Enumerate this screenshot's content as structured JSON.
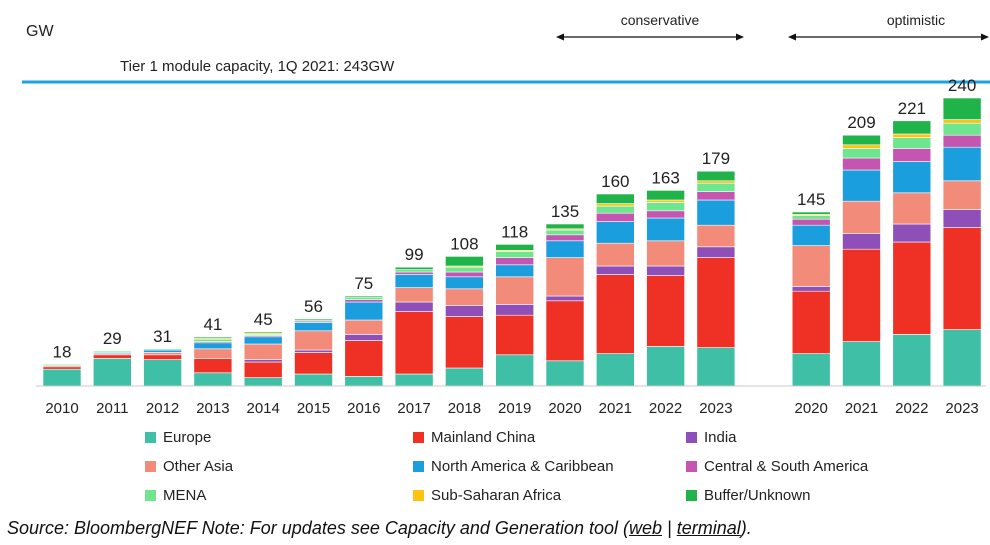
{
  "chart_data": {
    "type": "bar",
    "stacked": true,
    "ylabel": "GW",
    "reference_line": {
      "label": "Tier 1 module capacity, 1Q 2021: 243GW",
      "value": 243
    },
    "scenario_labels": {
      "conservative": "conservative",
      "optimistic": "optimistic"
    },
    "groups": [
      {
        "name": "",
        "categories": [
          "2010",
          "2011",
          "2012",
          "2013",
          "2014",
          "2015",
          "2016",
          "2017",
          "2018",
          "2019",
          "2020",
          "2021",
          "2022",
          "2023"
        ]
      },
      {
        "name": "",
        "categories": [
          "2020",
          "2021",
          "2022",
          "2023"
        ]
      }
    ],
    "totals": [
      18,
      29,
      31,
      41,
      45,
      56,
      75,
      99,
      108,
      118,
      135,
      160,
      163,
      179,
      145,
      209,
      221,
      240
    ],
    "series": [
      {
        "name": "Europe",
        "color": "#3fbfa6",
        "values": [
          14,
          23,
          22,
          11,
          7,
          10,
          8,
          10,
          15,
          26,
          21,
          27,
          33,
          32,
          27,
          37,
          43,
          47
        ]
      },
      {
        "name": "Mainland China",
        "color": "#ee3124",
        "values": [
          2,
          3,
          4,
          12,
          13,
          18,
          30,
          52,
          43,
          33,
          50,
          66,
          59,
          75,
          52,
          77,
          77,
          85
        ]
      },
      {
        "name": "India",
        "color": "#8e50b8",
        "values": [
          0,
          0,
          0,
          0,
          2,
          2,
          5,
          8,
          9,
          9,
          4,
          7,
          8,
          9,
          4,
          13,
          15,
          15
        ]
      },
      {
        "name": "Other Asia",
        "color": "#f28b7a",
        "values": [
          1,
          1,
          2,
          8,
          13,
          16,
          12,
          12,
          14,
          23,
          32,
          19,
          21,
          18,
          34,
          27,
          26,
          24
        ]
      },
      {
        "name": "North America & Caribbean",
        "color": "#1a9ede",
        "values": [
          0,
          1,
          2,
          5,
          6,
          7,
          15,
          11,
          10,
          10,
          14,
          18,
          19,
          21,
          17,
          26,
          26,
          28
        ]
      },
      {
        "name": "Central & South America",
        "color": "#c455b0",
        "values": [
          0,
          0,
          0,
          1,
          1,
          1,
          2,
          2,
          4,
          6,
          5,
          7,
          6,
          7,
          5,
          10,
          11,
          10
        ]
      },
      {
        "name": "MENA",
        "color": "#6ee58f",
        "values": [
          1,
          1,
          1,
          2,
          1,
          1,
          2,
          2,
          4,
          5,
          4,
          6,
          7,
          7,
          3,
          8,
          9,
          10
        ]
      },
      {
        "name": "Sub-Saharan Africa",
        "color": "#ffc20e",
        "values": [
          0,
          0,
          0,
          1,
          1,
          0,
          0,
          0,
          1,
          1,
          1,
          2,
          2,
          2,
          1,
          3,
          3,
          3
        ]
      },
      {
        "name": "Buffer/Unknown",
        "color": "#1fb34a",
        "values": [
          0,
          0,
          0,
          1,
          1,
          1,
          1,
          2,
          8,
          5,
          4,
          8,
          8,
          8,
          2,
          8,
          11,
          18
        ]
      }
    ],
    "ylim": [
      0,
      250
    ],
    "legend_position": "bottom"
  },
  "source": {
    "text": "Source: BloombergNEF Note: For updates see Capacity and Generation tool (",
    "link_web": "web",
    "separator": " | ",
    "link_terminal": "terminal",
    "suffix": ")."
  }
}
